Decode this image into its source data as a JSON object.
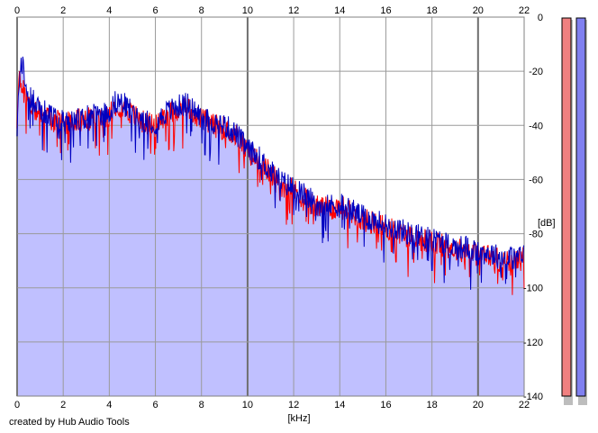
{
  "chart_data": {
    "type": "area",
    "xlabel": "[kHz]",
    "ylabel": "[dB]",
    "xlim": [
      0,
      22
    ],
    "ylim": [
      -140,
      0
    ],
    "x_ticks": [
      0,
      2,
      4,
      6,
      8,
      10,
      12,
      14,
      16,
      18,
      20,
      22
    ],
    "y_ticks": [
      0,
      -20,
      -40,
      -60,
      -80,
      -100,
      -120,
      -140
    ],
    "grid": true,
    "fill_color": "#c0c0ff",
    "series": [
      {
        "color": "#ff0000",
        "x": [
          0,
          0.1,
          0.2,
          0.4,
          0.6,
          0.8,
          1.0,
          1.5,
          2,
          2.5,
          3,
          3.5,
          4,
          4.3,
          4.6,
          5,
          5.5,
          6,
          6.5,
          7,
          7.4,
          8,
          8.5,
          9,
          9.5,
          10,
          10.5,
          11,
          11.5,
          12,
          12.5,
          13,
          13.5,
          14,
          14.5,
          15,
          15.5,
          16,
          16.5,
          17,
          17.5,
          18,
          18.5,
          19,
          19.5,
          20,
          20.5,
          21,
          21.5,
          22
        ],
        "values": [
          -38,
          -22,
          -25,
          -30,
          -33,
          -34,
          -35,
          -38,
          -39,
          -38,
          -38,
          -37,
          -36,
          -32,
          -33,
          -36,
          -39,
          -40,
          -36,
          -34,
          -33,
          -38,
          -40,
          -41,
          -44,
          -50,
          -53,
          -58,
          -62,
          -64,
          -67,
          -70,
          -71,
          -70,
          -72,
          -75,
          -76,
          -78,
          -79,
          -81,
          -82,
          -83,
          -84,
          -86,
          -86,
          -88,
          -88,
          -90,
          -90,
          -89
        ]
      },
      {
        "color": "#0000c0",
        "x": [
          0,
          0.1,
          0.2,
          0.4,
          0.6,
          0.8,
          1.0,
          1.5,
          2,
          2.5,
          3,
          3.5,
          4,
          4.3,
          4.6,
          5,
          5.5,
          6,
          6.5,
          7,
          7.4,
          8,
          8.5,
          9,
          9.5,
          10,
          10.5,
          11,
          11.5,
          12,
          12.5,
          13,
          13.5,
          14,
          14.5,
          15,
          15.5,
          16,
          16.5,
          17,
          17.5,
          18,
          18.5,
          19,
          19.5,
          20,
          20.5,
          21,
          21.5,
          22
        ],
        "values": [
          -40,
          -25,
          -16,
          -26,
          -30,
          -32,
          -34,
          -37,
          -39,
          -38,
          -37,
          -36,
          -35,
          -31,
          -32,
          -35,
          -38,
          -39,
          -35,
          -33,
          -32,
          -37,
          -39,
          -40,
          -43,
          -49,
          -52,
          -57,
          -61,
          -63,
          -66,
          -69,
          -70,
          -69,
          -71,
          -74,
          -75,
          -77,
          -78,
          -80,
          -81,
          -82,
          -83,
          -85,
          -85,
          -87,
          -87,
          -89,
          -89,
          -88
        ]
      }
    ]
  },
  "meters": {
    "left_color": "#f08080",
    "right_color": "#8080f0"
  },
  "credit": "created by Hub Audio Tools"
}
